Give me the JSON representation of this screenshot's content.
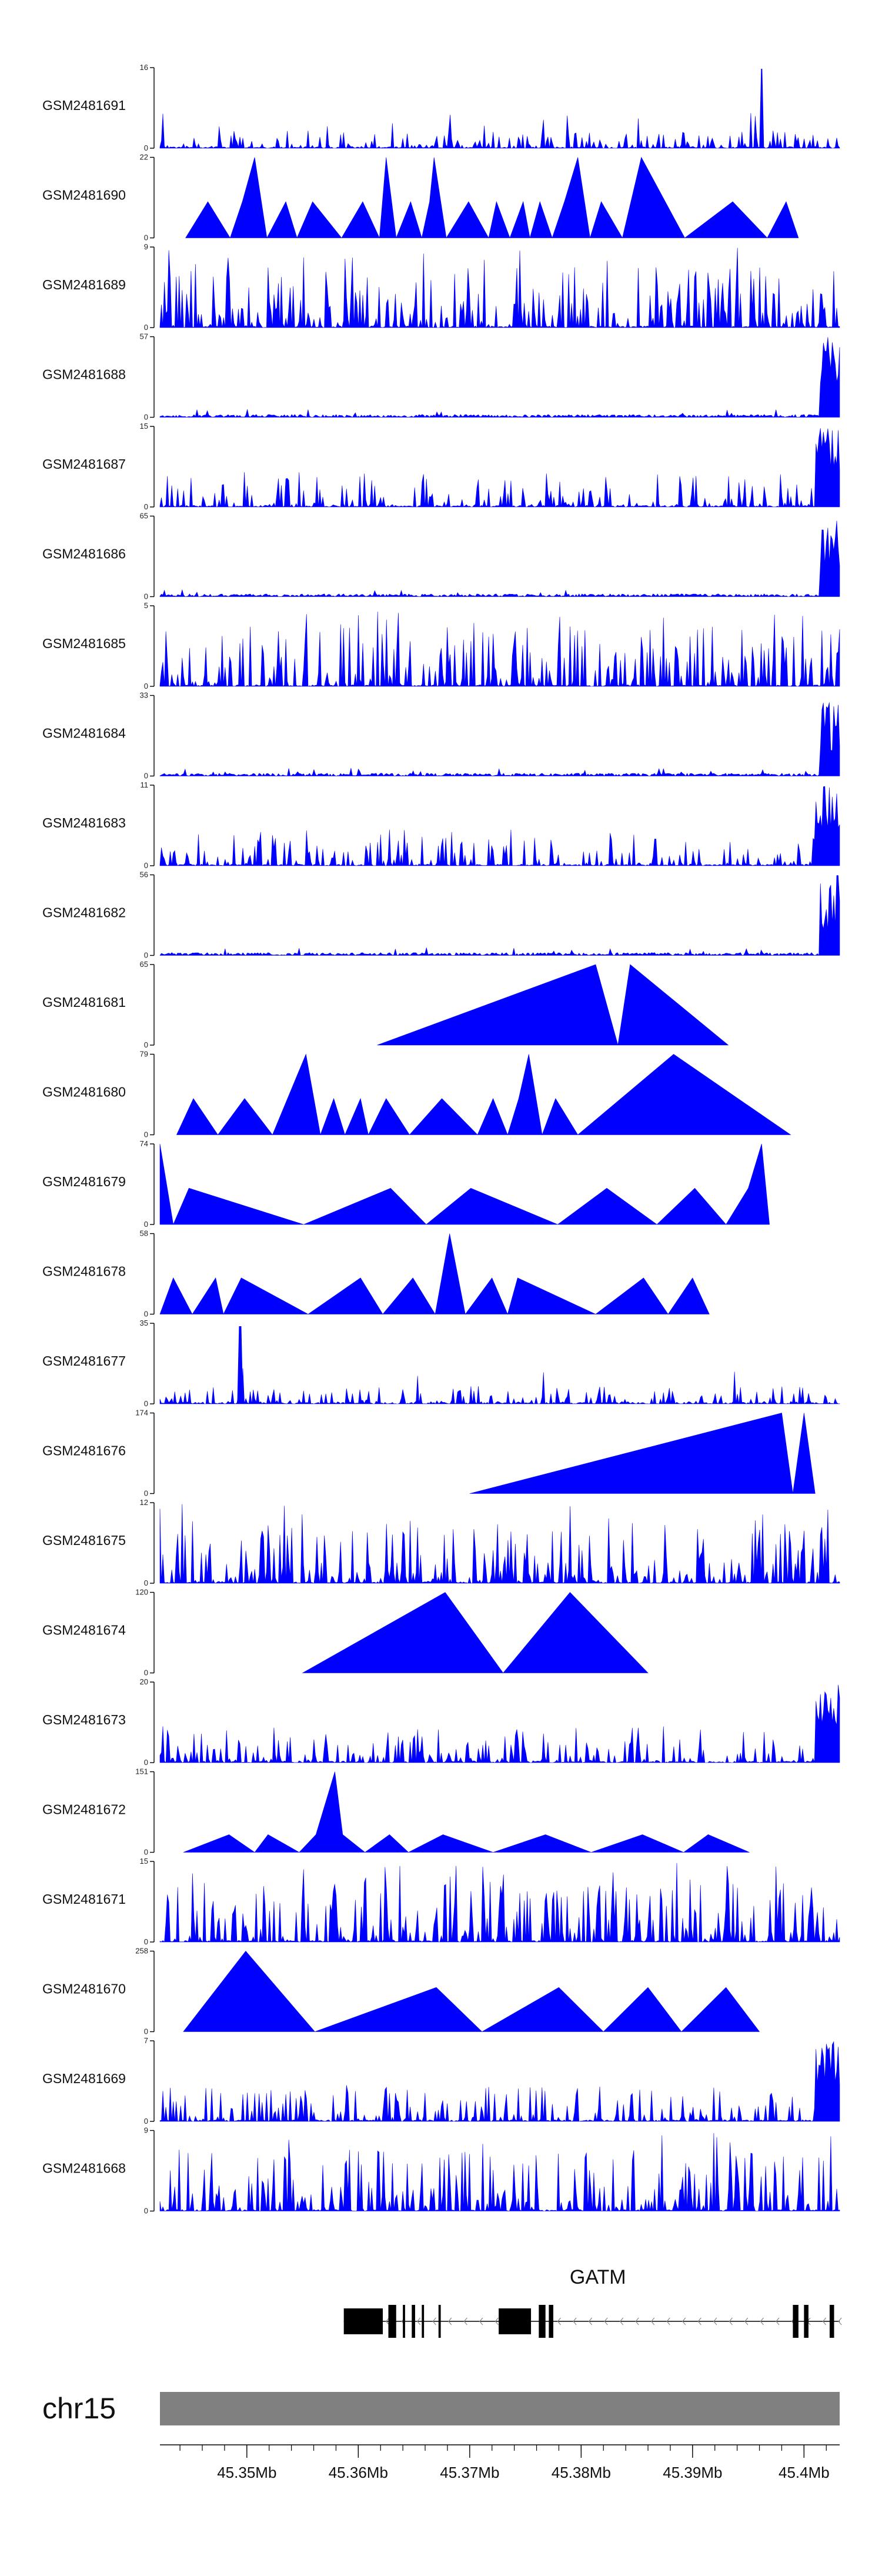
{
  "chart_data": {
    "type": "area",
    "title": "",
    "xlabel": "",
    "ylabel": "",
    "genome_range": [
      45.3422,
      45.4032
    ],
    "tracks": [
      {
        "sample": "GSM2481691",
        "ymax": 16,
        "ymax_label": "16",
        "shape": "noise-spike",
        "seed": 11
      },
      {
        "sample": "GSM2481690",
        "ymax": 22,
        "ymax_label": "22",
        "shape": "triangles",
        "seed": 12
      },
      {
        "sample": "GSM2481689",
        "ymax": 9,
        "ymax_label": "9",
        "shape": "noise",
        "seed": 13
      },
      {
        "sample": "GSM2481688",
        "ymax": 57,
        "ymax_label": "57",
        "shape": "low-peak-right",
        "seed": 14
      },
      {
        "sample": "GSM2481687",
        "ymax": 15,
        "ymax_label": "15",
        "shape": "noise-peak-right",
        "seed": 15
      },
      {
        "sample": "GSM2481686",
        "ymax": 65,
        "ymax_label": "65",
        "shape": "low-peak-right",
        "seed": 16
      },
      {
        "sample": "GSM2481685",
        "ymax": 5,
        "ymax_label": "5",
        "shape": "noise",
        "seed": 17
      },
      {
        "sample": "GSM2481684",
        "ymax": 33,
        "ymax_label": "33",
        "shape": "low-peak-right",
        "seed": 18
      },
      {
        "sample": "GSM2481683",
        "ymax": 11,
        "ymax_label": "11",
        "shape": "noise-peak-right",
        "seed": 19
      },
      {
        "sample": "GSM2481682",
        "ymax": 56,
        "ymax_label": "56",
        "shape": "low-peak-right",
        "seed": 20
      },
      {
        "sample": "GSM2481681",
        "ymax": 65,
        "ymax_label": "65",
        "shape": "triangles",
        "seed": 21
      },
      {
        "sample": "GSM2481680",
        "ymax": 79,
        "ymax_label": "79",
        "shape": "triangles",
        "seed": 22
      },
      {
        "sample": "GSM2481679",
        "ymax": 74,
        "ymax_label": "74",
        "shape": "triangles",
        "seed": 23
      },
      {
        "sample": "GSM2481678",
        "ymax": 58,
        "ymax_label": "58",
        "shape": "triangles",
        "seed": 24
      },
      {
        "sample": "GSM2481677",
        "ymax": 35,
        "ymax_label": "35",
        "shape": "noise-spike",
        "seed": 25
      },
      {
        "sample": "GSM2481676",
        "ymax": 174,
        "ymax_label": "174",
        "shape": "triangles",
        "seed": 26
      },
      {
        "sample": "GSM2481675",
        "ymax": 12,
        "ymax_label": "12",
        "shape": "noise",
        "seed": 27
      },
      {
        "sample": "GSM2481674",
        "ymax": 120,
        "ymax_label": "120",
        "shape": "triangles",
        "seed": 28
      },
      {
        "sample": "GSM2481673",
        "ymax": 20,
        "ymax_label": "20",
        "shape": "noise-peak-right",
        "seed": 29
      },
      {
        "sample": "GSM2481672",
        "ymax": 151,
        "ymax_label": "151",
        "shape": "triangles",
        "seed": 30
      },
      {
        "sample": "GSM2481671",
        "ymax": 15,
        "ymax_label": "15",
        "shape": "noise",
        "seed": 31
      },
      {
        "sample": "GSM2481670",
        "ymax": 258,
        "ymax_label": "258",
        "shape": "triangles",
        "seed": 32
      },
      {
        "sample": "GSM2481669",
        "ymax": 7,
        "ymax_label": "7",
        "shape": "noise-peak-right",
        "seed": 33
      },
      {
        "sample": "GSM2481668",
        "ymax": 9,
        "ymax_label": "9",
        "shape": "noise",
        "seed": 34
      }
    ],
    "triangle_peaks": {
      "GSM2481690": [
        [
          45.3445,
          0
        ],
        [
          45.3465,
          0.45
        ],
        [
          45.3485,
          0
        ],
        [
          45.3496,
          0.45
        ],
        [
          45.3507,
          1
        ],
        [
          45.3518,
          0
        ],
        [
          45.3535,
          0.45
        ],
        [
          45.3545,
          0
        ],
        [
          45.3559,
          0.45
        ],
        [
          45.3585,
          0
        ],
        [
          45.3604,
          0.45
        ],
        [
          45.3619,
          0
        ],
        [
          45.3625,
          1
        ],
        [
          45.3634,
          0
        ],
        [
          45.3647,
          0.45
        ],
        [
          45.3657,
          0
        ],
        [
          45.3664,
          0.45
        ],
        [
          45.3668,
          1
        ],
        [
          45.3679,
          0
        ],
        [
          45.3699,
          0.45
        ],
        [
          45.3717,
          0
        ],
        [
          45.3724,
          0.45
        ],
        [
          45.3736,
          0
        ],
        [
          45.3748,
          0.45
        ],
        [
          45.3754,
          0
        ],
        [
          45.3763,
          0.45
        ],
        [
          45.3774,
          0
        ],
        [
          45.3785,
          0.45
        ],
        [
          45.3797,
          1
        ],
        [
          45.3808,
          0
        ],
        [
          45.3818,
          0.45
        ],
        [
          45.3837,
          0
        ],
        [
          45.3854,
          1
        ],
        [
          45.3893,
          0
        ],
        [
          45.3936,
          0.45
        ],
        [
          45.3967,
          0
        ],
        [
          45.3984,
          0.45
        ],
        [
          45.3995,
          0
        ]
      ],
      "GSM2481681": [
        [
          45.3617,
          0
        ],
        [
          45.3813,
          1
        ],
        [
          45.3833,
          0
        ],
        [
          45.3844,
          1
        ],
        [
          45.3932,
          0
        ]
      ],
      "GSM2481680": [
        [
          45.3437,
          0
        ],
        [
          45.3452,
          0.45
        ],
        [
          45.3474,
          0
        ],
        [
          45.3498,
          0.45
        ],
        [
          45.3523,
          0
        ],
        [
          45.3553,
          1
        ],
        [
          45.3566,
          0
        ],
        [
          45.3578,
          0.45
        ],
        [
          45.3588,
          0
        ],
        [
          45.3602,
          0.45
        ],
        [
          45.3609,
          0
        ],
        [
          45.3625,
          0.45
        ],
        [
          45.3646,
          0
        ],
        [
          45.3675,
          0.45
        ],
        [
          45.3707,
          0
        ],
        [
          45.3721,
          0.45
        ],
        [
          45.3734,
          0
        ],
        [
          45.3744,
          0.45
        ],
        [
          45.3753,
          1
        ],
        [
          45.3765,
          0
        ],
        [
          45.3777,
          0.45
        ],
        [
          45.3797,
          0
        ],
        [
          45.3883,
          1
        ],
        [
          45.3988,
          0
        ]
      ],
      "GSM2481679": [
        [
          45.3422,
          1
        ],
        [
          45.3434,
          0
        ],
        [
          45.3448,
          0.45
        ],
        [
          45.3551,
          0
        ],
        [
          45.3629,
          0.45
        ],
        [
          45.3661,
          0
        ],
        [
          45.3701,
          0.45
        ],
        [
          45.3779,
          0
        ],
        [
          45.3823,
          0.45
        ],
        [
          45.3868,
          0
        ],
        [
          45.3902,
          0.45
        ],
        [
          45.393,
          0
        ],
        [
          45.395,
          0.45
        ],
        [
          45.3962,
          1
        ],
        [
          45.3969,
          0
        ]
      ],
      "GSM2481678": [
        [
          45.3422,
          0
        ],
        [
          45.3434,
          0.45
        ],
        [
          45.3451,
          0
        ],
        [
          45.3472,
          0.45
        ],
        [
          45.3479,
          0
        ],
        [
          45.3495,
          0.45
        ],
        [
          45.3555,
          0
        ],
        [
          45.3602,
          0.45
        ],
        [
          45.3622,
          0
        ],
        [
          45.3649,
          0.45
        ],
        [
          45.3669,
          0
        ],
        [
          45.3682,
          1
        ],
        [
          45.3696,
          0
        ],
        [
          45.372,
          0.45
        ],
        [
          45.3734,
          0
        ],
        [
          45.3743,
          0.45
        ],
        [
          45.3813,
          0
        ],
        [
          45.3856,
          0.45
        ],
        [
          45.3878,
          0
        ],
        [
          45.39,
          0.45
        ],
        [
          45.3915,
          0
        ]
      ],
      "GSM2481676": [
        [
          45.37,
          0
        ],
        [
          45.398,
          1
        ],
        [
          45.399,
          0
        ],
        [
          45.4,
          1
        ],
        [
          45.401,
          0
        ]
      ],
      "GSM2481674": [
        [
          45.355,
          0
        ],
        [
          45.3678,
          1
        ],
        [
          45.373,
          0
        ],
        [
          45.379,
          1
        ],
        [
          45.386,
          0
        ]
      ],
      "GSM2481672": [
        [
          45.3443,
          0
        ],
        [
          45.3484,
          0.22
        ],
        [
          45.3507,
          0
        ],
        [
          45.3519,
          0.22
        ],
        [
          45.3547,
          0
        ],
        [
          45.3562,
          0.22
        ],
        [
          45.3579,
          1
        ],
        [
          45.3586,
          0.22
        ],
        [
          45.3606,
          0
        ],
        [
          45.3628,
          0.22
        ],
        [
          45.3645,
          0
        ],
        [
          45.3676,
          0.22
        ],
        [
          45.3721,
          0
        ],
        [
          45.3768,
          0.22
        ],
        [
          45.3809,
          0
        ],
        [
          45.3855,
          0.22
        ],
        [
          45.3892,
          0
        ],
        [
          45.3914,
          0.22
        ],
        [
          45.3951,
          0
        ]
      ],
      "GSM2481670": [
        [
          45.3443,
          0
        ],
        [
          45.3499,
          1
        ],
        [
          45.3561,
          0
        ],
        [
          45.367,
          0.55
        ],
        [
          45.3711,
          0
        ],
        [
          45.378,
          0.55
        ],
        [
          45.382,
          0
        ],
        [
          45.386,
          0.55
        ],
        [
          45.389,
          0
        ],
        [
          45.393,
          0.55
        ],
        [
          45.396,
          0
        ]
      ]
    },
    "x_axis": {
      "ticks": [
        45.35,
        45.36,
        45.37,
        45.38,
        45.39,
        45.4
      ],
      "tick_labels": [
        "45.35Mb",
        "45.36Mb",
        "45.37Mb",
        "45.38Mb",
        "45.39Mb",
        "45.4Mb"
      ],
      "minor_step": 0.002
    },
    "chromosome": "chr15",
    "gene": {
      "name": "GATM",
      "strand": "-",
      "start": 45.3587,
      "end": 45.4032,
      "exons": [
        [
          45.3587,
          45.3622
        ],
        [
          45.3627,
          45.3634
        ],
        [
          45.364,
          45.3642
        ],
        [
          45.3648,
          45.3651
        ],
        [
          45.3657,
          45.3659
        ],
        [
          45.3672,
          45.3674
        ],
        [
          45.3726,
          45.3755
        ],
        [
          45.3762,
          45.3768
        ],
        [
          45.3771,
          45.3775
        ],
        [
          45.399,
          45.3995
        ],
        [
          45.4,
          45.4004
        ],
        [
          45.4023,
          45.4027
        ]
      ]
    },
    "colors": {
      "fill": "#0000ff",
      "axis": "#000000",
      "ideogram": "#808080",
      "exon": "#000000"
    }
  }
}
